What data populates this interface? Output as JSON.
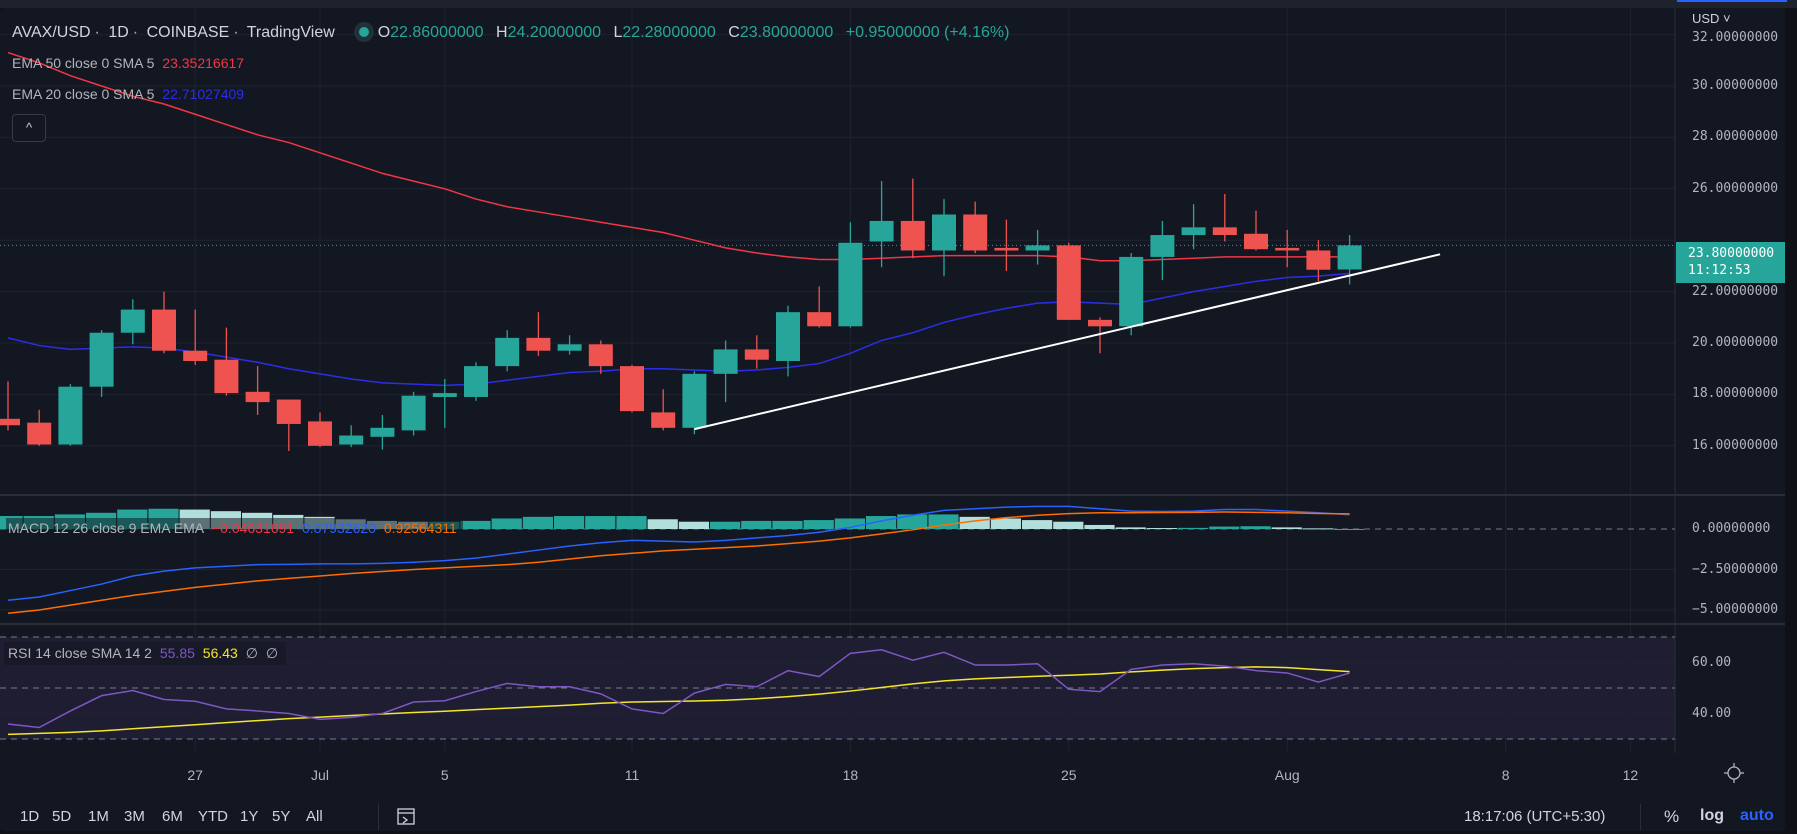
{
  "header": {
    "symbol": "AVAX/USD",
    "interval": "1D",
    "exchange": "COINBASE",
    "source": "TradingView",
    "sep": "·",
    "ohlc": {
      "o_label": "O",
      "o": "22.86000000",
      "h_label": "H",
      "h": "24.20000000",
      "l_label": "L",
      "l": "22.28000000",
      "c_label": "C",
      "c": "23.80000000",
      "change": "+0.95000000 (+4.16%)"
    }
  },
  "indicators": {
    "ema50": {
      "label": "EMA 50 close 0 SMA 5",
      "value": "23.35216617",
      "color": "#f23645"
    },
    "ema20": {
      "label": "EMA 20 close 0 SMA 5",
      "value": "22.71027409",
      "color": "#2a2ee8"
    },
    "collapse_icon": "^",
    "macd": {
      "label": "MACD 12 26 close 9 EMA EMA",
      "hist": "−0.04631691",
      "macd": "0.87932620",
      "signal": "0.92564311"
    },
    "rsi": {
      "label": "RSI 14 close SMA 14 2",
      "rsi": "55.85",
      "sma": "56.43",
      "v3": "∅",
      "v4": "∅"
    }
  },
  "price_axis": {
    "currency": "USD ˅",
    "ticks": [
      "32.00000000",
      "30.00000000",
      "28.00000000",
      "26.00000000",
      "22.00000000",
      "20.00000000",
      "18.00000000",
      "16.00000000"
    ],
    "tick_values": [
      32,
      30,
      28,
      26,
      22,
      20,
      18,
      16
    ],
    "current_price": "23.80000000",
    "countdown": "11:12:53"
  },
  "macd_axis": {
    "ticks": [
      "0.00000000",
      "−2.50000000",
      "−5.00000000"
    ],
    "tick_values": [
      0,
      -2.5,
      -5
    ]
  },
  "rsi_axis": {
    "ticks": [
      "60.00",
      "40.00"
    ],
    "tick_values": [
      60,
      40
    ]
  },
  "time_axis": {
    "labels": [
      {
        "label": "27",
        "index": 6
      },
      {
        "label": "Jul",
        "index": 10
      },
      {
        "label": "5",
        "index": 14
      },
      {
        "label": "11",
        "index": 20
      },
      {
        "label": "18",
        "index": 27
      },
      {
        "label": "25",
        "index": 34
      },
      {
        "label": "Aug",
        "index": 41
      },
      {
        "label": "8",
        "index": 48
      },
      {
        "label": "12",
        "index": 52
      }
    ]
  },
  "toolbar": {
    "timeframes": [
      "1D",
      "5D",
      "1M",
      "3M",
      "6M",
      "YTD",
      "1Y",
      "5Y",
      "All"
    ],
    "clock": "18:17:06 (UTC+5:30)",
    "percent": "%",
    "log": "log",
    "auto": "auto"
  },
  "colors": {
    "up": "#26a69a",
    "down": "#ef5350",
    "bg": "#131722",
    "grid": "#1f2330",
    "macd": "#2962ff",
    "signal": "#ff6d00",
    "rsi": "#7e57c2",
    "rsi_sma": "#f5e727",
    "trend": "#ffffff"
  },
  "chart_data": {
    "type": "candlestick",
    "start_date": "Jun 21",
    "candles": [
      [
        17.05,
        18.5,
        16.6,
        16.8
      ],
      [
        16.9,
        17.4,
        16.0,
        16.05
      ],
      [
        16.05,
        18.4,
        16.0,
        18.3
      ],
      [
        18.3,
        20.5,
        17.9,
        20.4
      ],
      [
        20.4,
        21.7,
        19.95,
        21.3
      ],
      [
        21.3,
        22.0,
        19.6,
        19.7
      ],
      [
        19.7,
        21.3,
        19.15,
        19.3
      ],
      [
        19.35,
        20.6,
        17.95,
        18.05
      ],
      [
        18.1,
        19.1,
        17.2,
        17.7
      ],
      [
        17.8,
        17.8,
        15.8,
        16.85
      ],
      [
        16.95,
        17.3,
        15.95,
        16.0
      ],
      [
        16.05,
        16.8,
        15.95,
        16.4
      ],
      [
        16.35,
        17.2,
        15.85,
        16.7
      ],
      [
        16.6,
        18.1,
        16.4,
        17.95
      ],
      [
        17.9,
        18.6,
        16.7,
        18.05
      ],
      [
        17.9,
        19.25,
        17.75,
        19.1
      ],
      [
        19.1,
        20.5,
        18.9,
        20.2
      ],
      [
        20.2,
        21.2,
        19.5,
        19.7
      ],
      [
        19.7,
        20.3,
        19.55,
        19.95
      ],
      [
        19.95,
        20.1,
        18.8,
        19.1
      ],
      [
        19.1,
        19.15,
        17.3,
        17.35
      ],
      [
        17.3,
        18.2,
        16.6,
        16.7
      ],
      [
        16.7,
        18.9,
        16.45,
        18.8
      ],
      [
        18.8,
        20.1,
        17.7,
        19.75
      ],
      [
        19.75,
        20.3,
        19.0,
        19.35
      ],
      [
        19.3,
        21.45,
        18.7,
        21.2
      ],
      [
        21.2,
        22.2,
        20.6,
        20.65
      ],
      [
        20.65,
        24.7,
        20.6,
        23.9
      ],
      [
        23.95,
        26.3,
        22.95,
        24.75
      ],
      [
        24.75,
        26.4,
        23.3,
        23.6
      ],
      [
        23.6,
        25.6,
        22.6,
        25.0
      ],
      [
        25.0,
        25.5,
        23.5,
        23.6
      ],
      [
        23.7,
        24.8,
        22.8,
        23.6
      ],
      [
        23.6,
        24.4,
        23.05,
        23.8
      ],
      [
        23.8,
        23.9,
        20.9,
        20.9
      ],
      [
        20.9,
        21.0,
        19.6,
        20.65
      ],
      [
        20.65,
        23.5,
        20.3,
        23.35
      ],
      [
        23.35,
        24.75,
        22.45,
        24.2
      ],
      [
        24.2,
        25.4,
        23.65,
        24.5
      ],
      [
        24.5,
        25.8,
        23.95,
        24.2
      ],
      [
        24.25,
        25.15,
        23.6,
        23.65
      ],
      [
        23.7,
        24.4,
        22.95,
        23.6
      ],
      [
        23.6,
        24.0,
        22.4,
        22.85
      ],
      [
        22.86,
        24.2,
        22.28,
        23.8
      ]
    ],
    "ema50": [
      31.3,
      30.9,
      30.4,
      30.0,
      29.6,
      29.3,
      28.9,
      28.5,
      28.1,
      27.8,
      27.4,
      27.0,
      26.6,
      26.3,
      26.0,
      25.6,
      25.3,
      25.1,
      24.9,
      24.7,
      24.5,
      24.3,
      24.0,
      23.7,
      23.5,
      23.35,
      23.25,
      23.25,
      23.3,
      23.35,
      23.4,
      23.4,
      23.4,
      23.4,
      23.35,
      23.2,
      23.2,
      23.25,
      23.3,
      23.35,
      23.35,
      23.35,
      23.35,
      23.35
    ],
    "ema20": [
      20.2,
      19.9,
      19.75,
      19.8,
      19.85,
      19.8,
      19.65,
      19.45,
      19.25,
      19.0,
      18.8,
      18.6,
      18.45,
      18.4,
      18.35,
      18.4,
      18.55,
      18.7,
      18.85,
      18.9,
      19.0,
      19.0,
      18.95,
      18.9,
      18.95,
      19.05,
      19.2,
      19.6,
      20.1,
      20.4,
      20.8,
      21.1,
      21.35,
      21.55,
      21.6,
      21.55,
      21.5,
      21.75,
      22.0,
      22.2,
      22.4,
      22.55,
      22.6,
      22.71
    ],
    "trendline": {
      "from": {
        "index": 22,
        "price": 16.65
      },
      "to": {
        "index": 45.9,
        "price": 23.45
      }
    },
    "macd": [
      -4.4,
      -4.2,
      -3.8,
      -3.4,
      -2.9,
      -2.6,
      -2.4,
      -2.3,
      -2.2,
      -2.18,
      -2.15,
      -2.15,
      -2.12,
      -2.05,
      -1.95,
      -1.8,
      -1.55,
      -1.3,
      -1.05,
      -0.85,
      -0.7,
      -0.75,
      -0.8,
      -0.7,
      -0.55,
      -0.4,
      -0.2,
      0.1,
      0.5,
      0.85,
      1.15,
      1.25,
      1.35,
      1.4,
      1.4,
      1.25,
      1.1,
      1.08,
      1.1,
      1.2,
      1.2,
      1.1,
      1.0,
      0.88
    ],
    "signal": [
      -5.2,
      -5.0,
      -4.7,
      -4.4,
      -4.1,
      -3.85,
      -3.6,
      -3.4,
      -3.2,
      -3.05,
      -2.9,
      -2.75,
      -2.62,
      -2.5,
      -2.4,
      -2.3,
      -2.2,
      -2.05,
      -1.85,
      -1.65,
      -1.5,
      -1.35,
      -1.25,
      -1.15,
      -1.05,
      -0.9,
      -0.75,
      -0.55,
      -0.3,
      -0.05,
      0.25,
      0.5,
      0.7,
      0.85,
      0.95,
      1.0,
      1.0,
      1.02,
      1.03,
      1.05,
      1.03,
      1.0,
      0.96,
      0.93
    ],
    "histogram": [
      0.8,
      0.8,
      0.9,
      1.0,
      1.2,
      1.25,
      1.2,
      1.1,
      1.0,
      0.87,
      0.75,
      0.6,
      0.5,
      0.45,
      0.45,
      0.5,
      0.65,
      0.75,
      0.8,
      0.8,
      0.8,
      0.6,
      0.45,
      0.45,
      0.5,
      0.5,
      0.55,
      0.65,
      0.8,
      0.9,
      0.9,
      0.75,
      0.65,
      0.55,
      0.45,
      0.25,
      0.1,
      0.06,
      0.07,
      0.15,
      0.17,
      0.1,
      0.04,
      -0.05
    ],
    "rsi": [
      35.9,
      34.5,
      41,
      47,
      49,
      45.5,
      44.8,
      41.8,
      41,
      40,
      37.7,
      38.5,
      40,
      44.5,
      45,
      48.6,
      51.8,
      50.5,
      50.5,
      47.7,
      41.8,
      40,
      48,
      51.4,
      50.5,
      56.8,
      54.5,
      63.6,
      65,
      60.9,
      64,
      59,
      59,
      59.5,
      49.5,
      48.6,
      57.3,
      59,
      59.5,
      58.6,
      56.8,
      55.9,
      52.3,
      55.85
    ],
    "rsi_sma": [
      31.8,
      32.2,
      32.6,
      33.2,
      34.0,
      34.8,
      35.6,
      36.4,
      37.2,
      38.0,
      38.6,
      39.2,
      39.8,
      40.4,
      40.9,
      41.5,
      42.1,
      42.7,
      43.3,
      44.0,
      44.5,
      44.7,
      44.9,
      45.2,
      45.8,
      46.6,
      47.6,
      48.8,
      50.2,
      51.6,
      52.8,
      53.6,
      54.1,
      54.6,
      55.0,
      55.5,
      56.3,
      57.0,
      57.6,
      58.0,
      58.3,
      58.0,
      57.2,
      56.43
    ],
    "rsi_bands": [
      70,
      50,
      30
    ]
  }
}
